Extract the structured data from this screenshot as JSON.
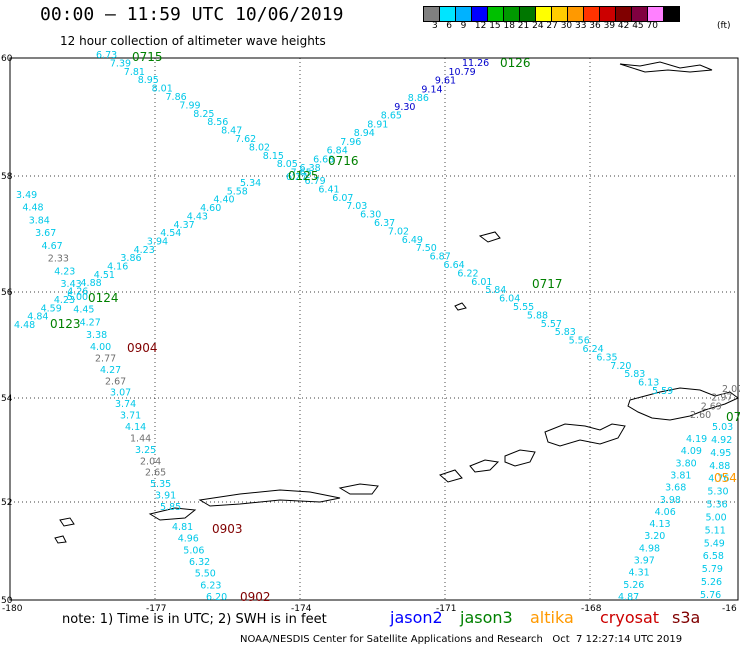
{
  "header": {
    "title": "00:00 – 11:59 UTC 10/06/2019",
    "subtitle": "12 hour collection of altimeter wave heights"
  },
  "colorbar": {
    "unit": "(ft)",
    "ticks": [
      "3",
      "6",
      "9",
      "12",
      "15",
      "18",
      "21",
      "24",
      "27",
      "30",
      "33",
      "36",
      "39",
      "42",
      "45",
      "70"
    ],
    "colors": [
      "#808080",
      "#00e5ff",
      "#00b2ff",
      "#0000ff",
      "#00c000",
      "#009900",
      "#007700",
      "#ffff00",
      "#ffcc00",
      "#ff9900",
      "#ff3300",
      "#cc0000",
      "#800000",
      "#800040",
      "#ff80ff",
      "#000000"
    ]
  },
  "axes": {
    "lat_labels": [
      "60",
      "58",
      "56",
      "54",
      "52",
      "50"
    ],
    "lon_labels": [
      "-180",
      "-177",
      "-174",
      "-171",
      "-168",
      "-16"
    ]
  },
  "pass_labels": {
    "p0715": "0715",
    "p0716": "0716",
    "p0717": "0717",
    "p0126": "0126",
    "p0125": "0125",
    "p0124": "0124",
    "p0123": "0123",
    "p0904": "0904",
    "p0903": "0903",
    "p0902": "0902",
    "p054": "054",
    "p07": "07"
  },
  "tracks": {
    "track_0715": [
      "6.73",
      "7.39",
      "7.81",
      "8.95",
      "8.01",
      "7.86",
      "7.99",
      "8.25",
      "8.56",
      "8.47",
      "7.62",
      "8.02",
      "8.15",
      "8.05",
      "7.65",
      "6.79",
      "6.41",
      "6.07",
      "7.03",
      "6.30",
      "6.37",
      "7.02",
      "6.49",
      "7.50",
      "6.87",
      "6.64",
      "6.22",
      "6.01",
      "5.84",
      "6.04",
      "5.55",
      "5.88",
      "5.57",
      "5.83",
      "5.56",
      "6.24",
      "6.35",
      "7.20",
      "5.83",
      "6.13",
      "5.59"
    ],
    "track_0126": [
      "11.26",
      "10.79",
      "9.61",
      "9.14",
      "8.86",
      "9.30",
      "8.65",
      "8.91",
      "8.94",
      "7.96",
      "6.84",
      "6.68",
      "6.38",
      "6.27"
    ],
    "track_0125_left": [
      "5.34",
      "5.58",
      "4.40",
      "4.60",
      "4.43",
      "4.37",
      "4.54",
      "3.94",
      "4.23",
      "3.86",
      "4.16",
      "4.51",
      "4.88",
      "4.26",
      "4.23",
      "4.59",
      "4.84",
      "4.48"
    ],
    "track_0124_left": [
      "3.49",
      "4.48",
      "3.84",
      "3.67",
      "4.67",
      "2.33",
      "4.23",
      "3.43",
      "5.00",
      "4.45",
      "4.27",
      "3.38"
    ],
    "track_0904": [
      "4.00",
      "2.77",
      "4.27",
      "2.67",
      "3.07",
      "3.74",
      "3.71",
      "4.14",
      "1.44",
      "3.25",
      "2.04",
      "2.65",
      "5.35",
      "3.91",
      "5.85"
    ],
    "track_0903": [
      "4.81",
      "4.96",
      "5.06",
      "6.32",
      "5.50",
      "6.23",
      "6.20"
    ],
    "track_right_a": [
      "4.19",
      "4.09",
      "3.80",
      "3.81",
      "3.68",
      "3.98",
      "4.06",
      "4.13",
      "3.20",
      "4.98",
      "3.97",
      "4.31",
      "5.26",
      "4.87"
    ],
    "track_right_b": [
      "5.03",
      "4.92",
      "4.95",
      "4.88",
      "4.76",
      "5.30",
      "5.36",
      "5.00",
      "5.11",
      "5.49",
      "6.58",
      "5.79",
      "5.26",
      "5.76"
    ],
    "gray_right": [
      "2.07",
      "2.97",
      "2.69",
      "2.60"
    ]
  },
  "footer": {
    "note": "note: 1) Time is in UTC; 2) SWH is in feet",
    "legend": [
      {
        "label": "jason2",
        "color": "#0000ff"
      },
      {
        "label": "jason3",
        "color": "#008000"
      },
      {
        "label": "altika",
        "color": "#ff9900"
      },
      {
        "label": "cryosat",
        "color": "#cc0000"
      },
      {
        "label": "s3a",
        "color": "#800000"
      }
    ],
    "credit": "NOAA/NESDIS Center for Satellite Applications and Research   Oct  7 12:27:14 UTC 2019"
  }
}
